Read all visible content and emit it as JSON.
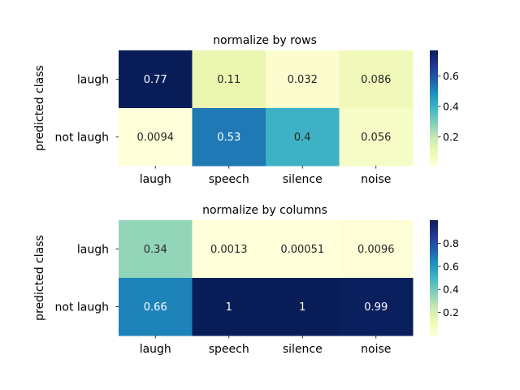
{
  "chart_data": [
    {
      "type": "heatmap",
      "title": "normalize by rows",
      "ylabel": "predicted class",
      "xlabel": "",
      "rows": [
        "laugh",
        "not laugh"
      ],
      "columns": [
        "laugh",
        "speech",
        "silence",
        "noise"
      ],
      "values": [
        [
          0.77,
          0.11,
          0.032,
          0.086
        ],
        [
          0.0094,
          0.53,
          0.4,
          0.056
        ]
      ],
      "annotations": [
        [
          "0.77",
          "0.11",
          "0.032",
          "0.086"
        ],
        [
          "0.0094",
          "0.53",
          "0.4",
          "0.056"
        ]
      ],
      "colormap": "YlGnBu",
      "colorbar": {
        "ticks": [
          "0.2",
          "0.4",
          "0.6"
        ],
        "tick_values": [
          0.2,
          0.4,
          0.6
        ],
        "range": [
          0.0094,
          0.77
        ]
      }
    },
    {
      "type": "heatmap",
      "title": "normalize by columns",
      "ylabel": "predicted class",
      "xlabel": "",
      "rows": [
        "laugh",
        "not laugh"
      ],
      "columns": [
        "laugh",
        "speech",
        "silence",
        "noise"
      ],
      "values": [
        [
          0.34,
          0.0013,
          0.00051,
          0.0096
        ],
        [
          0.66,
          1,
          1,
          0.99
        ]
      ],
      "annotations": [
        [
          "0.34",
          "0.0013",
          "0.00051",
          "0.0096"
        ],
        [
          "0.66",
          "1",
          "1",
          "0.99"
        ]
      ],
      "colormap": "YlGnBu",
      "colorbar": {
        "ticks": [
          "0.2",
          "0.4",
          "0.6",
          "0.8"
        ],
        "tick_values": [
          0.2,
          0.4,
          0.6,
          0.8
        ],
        "range": [
          0.00051,
          1
        ]
      }
    }
  ]
}
